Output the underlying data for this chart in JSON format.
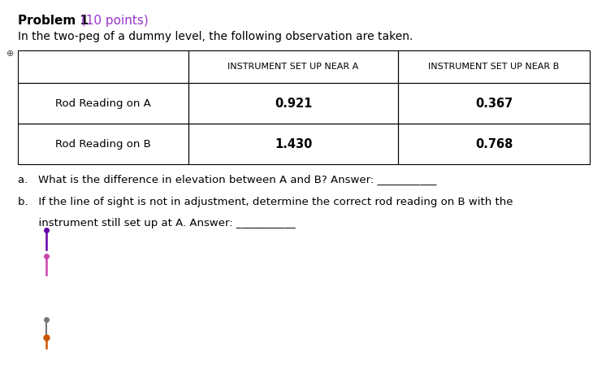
{
  "title_black": "Problem 1",
  "title_orange": " (10 points)",
  "subtitle": "In the two-peg of a dummy level, the following observation are taken.",
  "col_headers": [
    "",
    "INSTRUMENT SET UP NEAR A",
    "INSTRUMENT SET UP NEAR B"
  ],
  "rows": [
    [
      "Rod Reading on A",
      "0.921",
      "0.367"
    ],
    [
      "Rod Reading on B",
      "1.430",
      "0.768"
    ]
  ],
  "question_a": "a.   What is the difference in elevation between A and B? Answer: ___________",
  "question_b1": "b.   If the line of sight is not in adjustment, determine the correct rod reading on B with the",
  "question_b2": "      instrument still set up at A. Answer: ___________",
  "background_color": "#ffffff",
  "title_color": "#000000",
  "points_color": "#9933cc",
  "question_color": "#000000",
  "cursor1_line": "#6600aa",
  "cursor1_dot": "#6600aa",
  "cursor2_line": "#cc44aa",
  "cursor2_dot": "#cc44aa",
  "cursor3_line": "#777777",
  "cursor3_dot_top": "#777777",
  "cursor3_dot_bot": "#cc5500"
}
